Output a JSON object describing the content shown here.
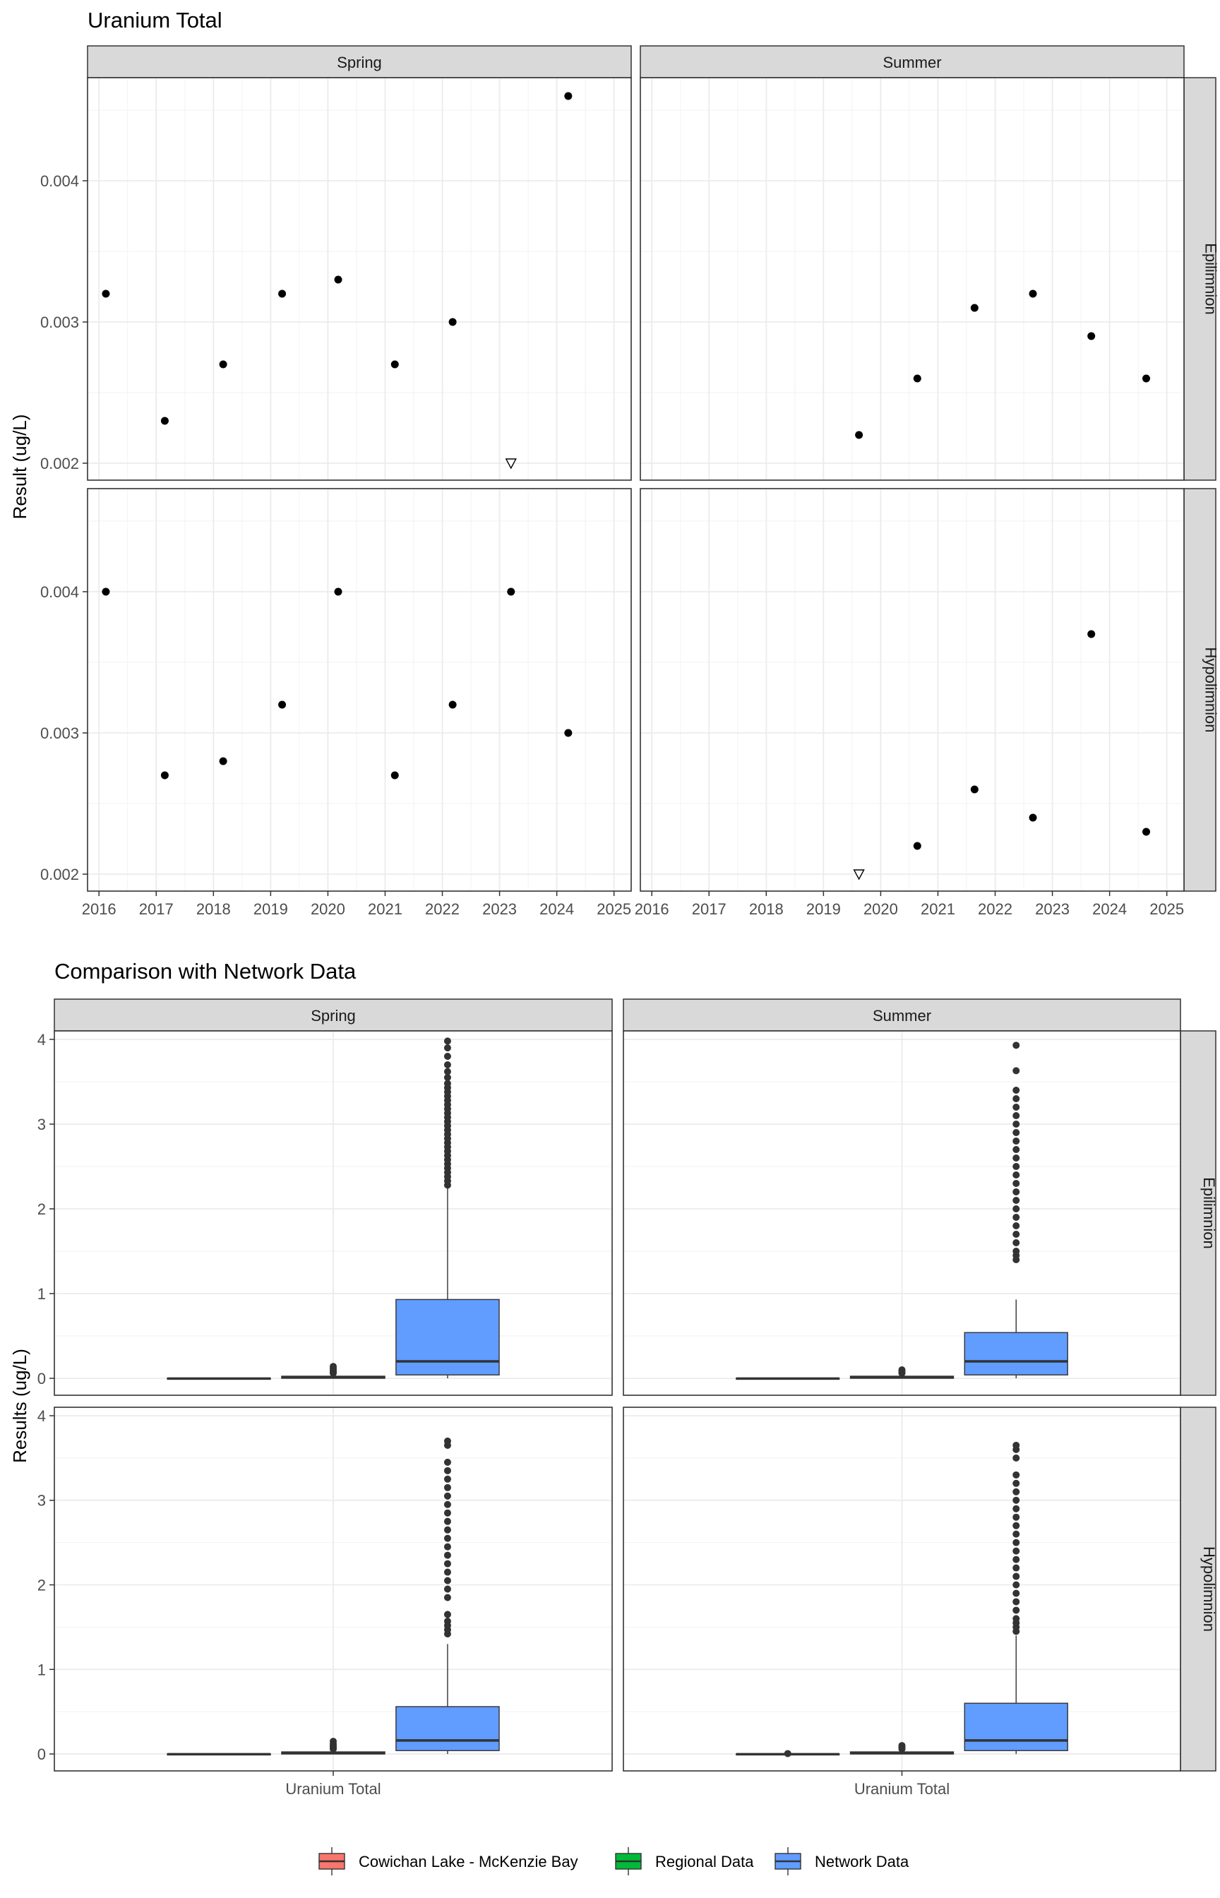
{
  "chart_data": [
    {
      "type": "scatter",
      "title": "Uranium Total",
      "ylabel": "Result (ug/L)",
      "xlabel": "",
      "col_facets": [
        "Spring",
        "Summer"
      ],
      "row_facets": [
        "Epilimnion",
        "Hypolimnion"
      ],
      "xlim": [
        2015.8,
        2025.3
      ],
      "ylim": [
        0.00188,
        0.00473
      ],
      "x_ticks": [
        2016,
        2017,
        2018,
        2019,
        2020,
        2021,
        2022,
        2023,
        2024,
        2025
      ],
      "x_tick_labels": [
        "2016",
        "2017",
        "2018",
        "2019",
        "2020",
        "2021",
        "2022",
        "2023",
        "2024",
        "2025"
      ],
      "y_ticks": [
        0.002,
        0.003,
        0.004
      ],
      "y_tick_labels": [
        "0.002",
        "0.003",
        "0.004"
      ],
      "grid": true,
      "markers": {
        "detected": "filled-circle",
        "below_detection": "open-triangle-down"
      },
      "panels": [
        {
          "col": "Spring",
          "row": "Epilimnion",
          "points": [
            {
              "x": 2016.12,
              "y": 0.0032,
              "marker": "detected"
            },
            {
              "x": 2017.15,
              "y": 0.0023,
              "marker": "detected"
            },
            {
              "x": 2018.17,
              "y": 0.0027,
              "marker": "detected"
            },
            {
              "x": 2019.2,
              "y": 0.0032,
              "marker": "detected"
            },
            {
              "x": 2020.18,
              "y": 0.0033,
              "marker": "detected"
            },
            {
              "x": 2021.17,
              "y": 0.0027,
              "marker": "detected"
            },
            {
              "x": 2022.18,
              "y": 0.003,
              "marker": "detected"
            },
            {
              "x": 2023.2,
              "y": 0.002,
              "marker": "below_detection"
            },
            {
              "x": 2024.2,
              "y": 0.0046,
              "marker": "detected"
            }
          ]
        },
        {
          "col": "Summer",
          "row": "Epilimnion",
          "points": [
            {
              "x": 2019.62,
              "y": 0.0022,
              "marker": "detected"
            },
            {
              "x": 2020.64,
              "y": 0.0026,
              "marker": "detected"
            },
            {
              "x": 2021.64,
              "y": 0.0031,
              "marker": "detected"
            },
            {
              "x": 2022.66,
              "y": 0.0032,
              "marker": "detected"
            },
            {
              "x": 2023.68,
              "y": 0.0029,
              "marker": "detected"
            },
            {
              "x": 2024.64,
              "y": 0.0026,
              "marker": "detected"
            }
          ]
        },
        {
          "col": "Spring",
          "row": "Hypolimnion",
          "points": [
            {
              "x": 2016.12,
              "y": 0.004,
              "marker": "detected"
            },
            {
              "x": 2017.15,
              "y": 0.0027,
              "marker": "detected"
            },
            {
              "x": 2018.17,
              "y": 0.0028,
              "marker": "detected"
            },
            {
              "x": 2019.2,
              "y": 0.0032,
              "marker": "detected"
            },
            {
              "x": 2020.18,
              "y": 0.004,
              "marker": "detected"
            },
            {
              "x": 2021.17,
              "y": 0.0027,
              "marker": "detected"
            },
            {
              "x": 2022.18,
              "y": 0.0032,
              "marker": "detected"
            },
            {
              "x": 2023.2,
              "y": 0.004,
              "marker": "detected"
            },
            {
              "x": 2024.2,
              "y": 0.003,
              "marker": "detected"
            }
          ]
        },
        {
          "col": "Summer",
          "row": "Hypolimnion",
          "points": [
            {
              "x": 2019.62,
              "y": 0.002,
              "marker": "below_detection"
            },
            {
              "x": 2020.64,
              "y": 0.0022,
              "marker": "detected"
            },
            {
              "x": 2021.64,
              "y": 0.0026,
              "marker": "detected"
            },
            {
              "x": 2022.66,
              "y": 0.0024,
              "marker": "detected"
            },
            {
              "x": 2023.68,
              "y": 0.0037,
              "marker": "detected"
            },
            {
              "x": 2024.64,
              "y": 0.0023,
              "marker": "detected"
            }
          ]
        }
      ]
    },
    {
      "type": "box",
      "title": "Comparison with Network Data",
      "ylabel": "Results (ug/L)",
      "xlabel": "",
      "x_category": "Uranium Total",
      "col_facets": [
        "Spring",
        "Summer"
      ],
      "row_facets": [
        "Epilimnion",
        "Hypolimnion"
      ],
      "ylim": [
        -0.2,
        4.1
      ],
      "y_ticks": [
        0,
        1,
        2,
        3,
        4
      ],
      "y_tick_labels": [
        "0",
        "1",
        "2",
        "3",
        "4"
      ],
      "grid": true,
      "legend_position": "bottom",
      "groups": [
        {
          "name": "Cowichan Lake - McKenzie Bay",
          "color": "#F8766D"
        },
        {
          "name": "Regional Data",
          "color": "#00BA38"
        },
        {
          "name": "Network Data",
          "color": "#619CFF"
        }
      ],
      "panels": [
        {
          "col": "Spring",
          "row": "Epilimnion",
          "boxes": [
            {
              "group": "Cowichan Lake - McKenzie Bay",
              "q1": -0.005,
              "median": -0.003,
              "q3": 0.0,
              "whisker_low": -0.005,
              "whisker_high": 0.0,
              "outliers": []
            },
            {
              "group": "Regional Data",
              "q1": 0.0,
              "median": 0.01,
              "q3": 0.025,
              "whisker_low": 0.0,
              "whisker_high": 0.05,
              "outliers": [
                0.06,
                0.08,
                0.1,
                0.12,
                0.14
              ]
            },
            {
              "group": "Network Data",
              "q1": 0.04,
              "median": 0.2,
              "q3": 0.93,
              "whisker_low": 0.0,
              "whisker_high": 2.25,
              "outliers": [
                2.28,
                2.33,
                2.38,
                2.43,
                2.48,
                2.53,
                2.58,
                2.63,
                2.68,
                2.73,
                2.78,
                2.83,
                2.88,
                2.93,
                2.98,
                3.03,
                3.08,
                3.13,
                3.18,
                3.23,
                3.28,
                3.33,
                3.38,
                3.43,
                3.48,
                3.55,
                3.62,
                3.7,
                3.8,
                3.9,
                3.98
              ]
            }
          ]
        },
        {
          "col": "Summer",
          "row": "Epilimnion",
          "boxes": [
            {
              "group": "Cowichan Lake - McKenzie Bay",
              "q1": -0.005,
              "median": -0.003,
              "q3": 0.0,
              "whisker_low": -0.005,
              "whisker_high": 0.0,
              "outliers": []
            },
            {
              "group": "Regional Data",
              "q1": 0.0,
              "median": 0.01,
              "q3": 0.025,
              "whisker_low": 0.0,
              "whisker_high": 0.04,
              "outliers": [
                0.06,
                0.08,
                0.1
              ]
            },
            {
              "group": "Network Data",
              "q1": 0.04,
              "median": 0.2,
              "q3": 0.54,
              "whisker_low": 0.0,
              "whisker_high": 0.93,
              "outliers": [
                1.4,
                1.45,
                1.5,
                1.6,
                1.7,
                1.8,
                1.9,
                2.0,
                2.1,
                2.2,
                2.3,
                2.4,
                2.5,
                2.6,
                2.7,
                2.8,
                2.9,
                3.0,
                3.1,
                3.2,
                3.3,
                3.4,
                3.63,
                3.93
              ]
            }
          ]
        },
        {
          "col": "Spring",
          "row": "Hypolimnion",
          "boxes": [
            {
              "group": "Cowichan Lake - McKenzie Bay",
              "q1": -0.005,
              "median": -0.003,
              "q3": 0.0,
              "whisker_low": -0.005,
              "whisker_high": 0.0,
              "outliers": []
            },
            {
              "group": "Regional Data",
              "q1": 0.0,
              "median": 0.01,
              "q3": 0.025,
              "whisker_low": 0.0,
              "whisker_high": 0.05,
              "outliers": [
                0.06,
                0.08,
                0.1,
                0.12,
                0.15
              ]
            },
            {
              "group": "Network Data",
              "q1": 0.04,
              "median": 0.16,
              "q3": 0.56,
              "whisker_low": 0.0,
              "whisker_high": 1.3,
              "outliers": [
                1.42,
                1.47,
                1.52,
                1.57,
                1.65,
                1.85,
                1.95,
                2.05,
                2.15,
                2.25,
                2.35,
                2.45,
                2.55,
                2.65,
                2.75,
                2.85,
                2.95,
                3.05,
                3.15,
                3.25,
                3.35,
                3.45,
                3.65,
                3.7
              ]
            }
          ]
        },
        {
          "col": "Summer",
          "row": "Hypolimnion",
          "boxes": [
            {
              "group": "Cowichan Lake - McKenzie Bay",
              "q1": -0.005,
              "median": -0.003,
              "q3": 0.0,
              "whisker_low": -0.005,
              "whisker_high": 0.0,
              "outliers": [
                0.005
              ]
            },
            {
              "group": "Regional Data",
              "q1": 0.0,
              "median": 0.01,
              "q3": 0.025,
              "whisker_low": 0.0,
              "whisker_high": 0.04,
              "outliers": [
                0.06,
                0.08,
                0.1
              ]
            },
            {
              "group": "Network Data",
              "q1": 0.04,
              "median": 0.16,
              "q3": 0.6,
              "whisker_low": 0.0,
              "whisker_high": 1.4,
              "outliers": [
                1.45,
                1.5,
                1.55,
                1.6,
                1.7,
                1.8,
                1.9,
                2.0,
                2.1,
                2.2,
                2.3,
                2.4,
                2.5,
                2.6,
                2.7,
                2.8,
                2.9,
                3.0,
                3.1,
                3.2,
                3.3,
                3.5,
                3.6,
                3.65
              ]
            }
          ]
        }
      ]
    }
  ]
}
